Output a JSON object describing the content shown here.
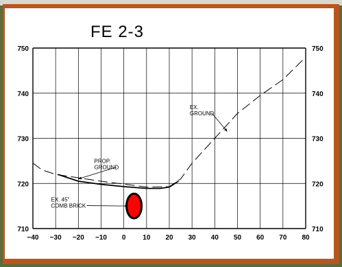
{
  "chart_data": {
    "type": "line",
    "title": "FE 2-3",
    "xlim": [
      -40,
      80
    ],
    "ylim": [
      710,
      750
    ],
    "x_ticks": [
      -40,
      -30,
      -20,
      -10,
      0,
      10,
      20,
      30,
      40,
      50,
      60,
      70,
      80
    ],
    "y_ticks": [
      710,
      720,
      730,
      740,
      750
    ],
    "grid": true,
    "series": [
      {
        "name": "EX. GROUND",
        "style": "dashed",
        "points": [
          [
            -40,
            724.5
          ],
          [
            -36,
            723
          ],
          [
            -30,
            722
          ],
          [
            -10,
            720.5
          ],
          [
            10,
            719.2
          ],
          [
            20,
            719.3
          ],
          [
            25,
            721
          ],
          [
            30,
            724.5
          ],
          [
            40,
            730
          ],
          [
            50,
            735.5
          ],
          [
            60,
            739.5
          ],
          [
            70,
            743
          ],
          [
            80,
            748
          ]
        ]
      },
      {
        "name": "PROP. GROUND",
        "style": "solid",
        "points": [
          [
            -29,
            722
          ],
          [
            -20,
            720.5
          ],
          [
            -10,
            719.8
          ],
          [
            0,
            719.3
          ],
          [
            10,
            718.9
          ],
          [
            16,
            718.9
          ],
          [
            20,
            719.2
          ],
          [
            24,
            720.5
          ]
        ]
      }
    ],
    "annotations": [
      {
        "lines": [
          "EX.",
          "GROUND"
        ],
        "x": 29,
        "y": 736.5,
        "target": [
          45.5,
          731.5
        ]
      },
      {
        "lines": [
          "PROP.",
          "GROUND"
        ],
        "x": -13,
        "y": 724.5,
        "target": [
          -20,
          721
        ]
      },
      {
        "lines": [
          "EX. 45\"",
          "COMB BRICK"
        ],
        "x": -32,
        "y": 716,
        "target": [
          2,
          715
        ]
      }
    ],
    "marker": {
      "x": 4.5,
      "y": 715,
      "shape": "ellipse",
      "color": "#ff0000"
    }
  }
}
